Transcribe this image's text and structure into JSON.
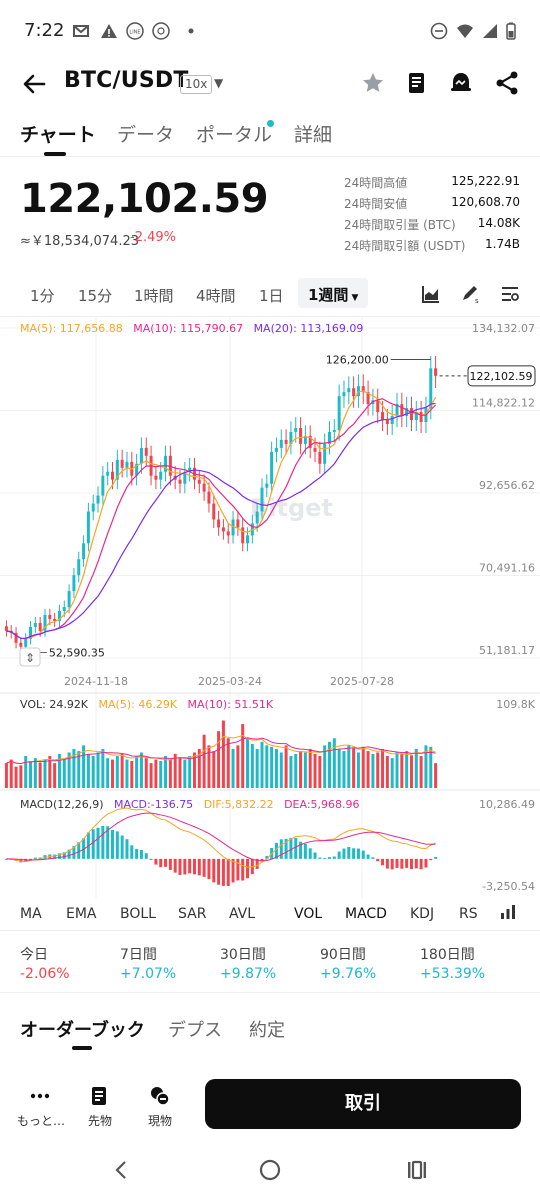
{
  "status_bar": {
    "time": "7:22",
    "left_icons": [
      "gmail-icon",
      "warning-icon",
      "line-icon",
      "app-icon",
      "dot-icon"
    ],
    "right_icons": [
      "dnd-icon",
      "wifi-icon",
      "signal-icon",
      "battery-icon"
    ]
  },
  "header": {
    "pair": "BTC/USDT",
    "leverage": "10x",
    "icons": [
      "star-icon",
      "book-icon",
      "alert-icon",
      "share-icon"
    ]
  },
  "tabs": [
    "チャート",
    "データ",
    "ポータル",
    "詳細"
  ],
  "price": {
    "last": "122,102.59",
    "fiat": "≈￥18,534,074.23",
    "change": "-2.49%",
    "stats": [
      {
        "label": "24時間高値",
        "value": "125,222.91"
      },
      {
        "label": "24時間安値",
        "value": "120,608.70"
      },
      {
        "label": "24時間取引量 (BTC)",
        "value": "14.08K"
      },
      {
        "label": "24時間取引額 (USDT)",
        "value": "1.74B"
      }
    ]
  },
  "intervals": [
    "1分",
    "15分",
    "1時間",
    "4時間",
    "1日"
  ],
  "interval_selected": "1週間",
  "chart_data": {
    "type": "candlestick",
    "ma_legend": {
      "ma5": "MA(5): 117,656.88",
      "ma10": "MA(10): 115,790.67",
      "ma20": "MA(20): 113,169.09"
    },
    "y_ticks": [
      "134,132.07",
      "114,822.12",
      "92,656.62",
      "70,491.16",
      "51,181.17"
    ],
    "x_ticks": [
      "2024-11-18",
      "2025-03-24",
      "2025-07-28"
    ],
    "high_label": "126,200.00",
    "low_label": "52,590.35",
    "last_price_label": "122,102.59",
    "ylim": [
      51181.17,
      134132.07
    ],
    "closes": [
      58000,
      57500,
      55000,
      54000,
      56000,
      59000,
      60000,
      58000,
      62000,
      61000,
      60500,
      63000,
      64000,
      68000,
      72000,
      76000,
      80000,
      88000,
      90000,
      92000,
      97000,
      98000,
      96000,
      101000,
      99000,
      100500,
      97000,
      100000,
      104000,
      102000,
      97000,
      96000,
      98000,
      102000,
      97000,
      96000,
      95000,
      98000,
      99000,
      96000,
      95000,
      93000,
      90000,
      86000,
      84000,
      83000,
      82000,
      86000,
      84000,
      80000,
      82000,
      85000,
      88000,
      94000,
      95000,
      103000,
      104000,
      106000,
      105000,
      108000,
      109000,
      105000,
      107000,
      104000,
      103000,
      100000,
      105000,
      108000,
      108500,
      117000,
      118000,
      119000,
      117000,
      119500,
      118000,
      115000,
      116000,
      113000,
      111000,
      110000,
      112000,
      115000,
      112000,
      114000,
      111000,
      113000,
      110500,
      114000,
      124000,
      122102.59
    ]
  },
  "volume": {
    "legend": {
      "vol": "VOL: 24.92K",
      "ma5": "MA(5): 46.29K",
      "ma10": "MA(10): 51.51K"
    },
    "max_label": "109.8K",
    "values": [
      35,
      40,
      30,
      32,
      45,
      38,
      42,
      36,
      40,
      45,
      35,
      48,
      40,
      50,
      55,
      52,
      60,
      48,
      45,
      50,
      55,
      42,
      40,
      45,
      48,
      40,
      38,
      45,
      50,
      42,
      35,
      40,
      38,
      45,
      40,
      48,
      42,
      40,
      45,
      50,
      55,
      75,
      60,
      52,
      80,
      95,
      70,
      55,
      60,
      90,
      70,
      62,
      55,
      65,
      60,
      58,
      55,
      50,
      60,
      45,
      48,
      52,
      50,
      55,
      48,
      45,
      60,
      65,
      70,
      55,
      52,
      60,
      56,
      50,
      58,
      52,
      48,
      50,
      55,
      45,
      42,
      50,
      48,
      52,
      46,
      55,
      45,
      60,
      58,
      35
    ]
  },
  "macd": {
    "legend": {
      "title": "MACD(12,26,9)",
      "macd": "MACD:-136.75",
      "dif": "DIF:5,832.22",
      "dea": "DEA:5,968.96"
    },
    "max_label": "10,286.49",
    "min_label": "-3,250.54"
  },
  "indicators": [
    "MA",
    "EMA",
    "BOLL",
    "SAR",
    "AVL",
    "VOL",
    "MACD",
    "KDJ",
    "RS"
  ],
  "performance": [
    {
      "label": "今日",
      "value": "-2.06%"
    },
    {
      "label": "7日間",
      "value": "+7.07%"
    },
    {
      "label": "30日間",
      "value": "+9.87%"
    },
    {
      "label": "90日間",
      "value": "+9.76%"
    },
    {
      "label": "180日間",
      "value": "+53.39%"
    }
  ],
  "orderbook_tabs": [
    "オーダーブック",
    "デプス",
    "約定"
  ],
  "bottom_bar": {
    "more": "もっと…",
    "futures": "先物",
    "spot": "現物",
    "trade": "取引"
  },
  "colors": {
    "up": "#1fb9c8",
    "down": "#f0454f",
    "ma5": "#f5a623",
    "ma10": "#e8288a",
    "ma20": "#7b2cf0"
  }
}
